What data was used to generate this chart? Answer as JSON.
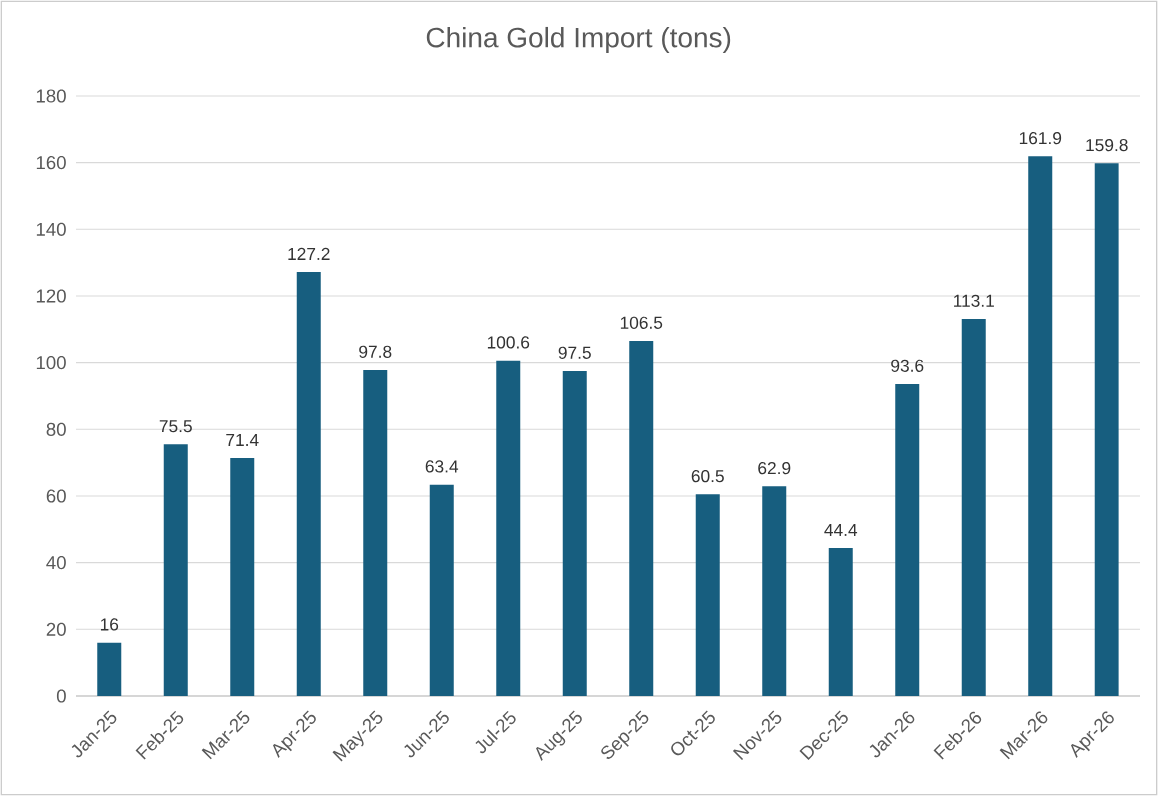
{
  "chart_data": {
    "type": "bar",
    "title": "China Gold Import (tons)",
    "categories": [
      "Jan-25",
      "Feb-25",
      "Mar-25",
      "Apr-25",
      "May-25",
      "Jun-25",
      "Jul-25",
      "Aug-25",
      "Sep-25",
      "Oct-25",
      "Nov-25",
      "Dec-25",
      "Jan-26",
      "Feb-26",
      "Mar-26",
      "Apr-26"
    ],
    "values": [
      16,
      75.5,
      71.4,
      127.2,
      97.8,
      63.4,
      100.6,
      97.5,
      106.5,
      60.5,
      62.9,
      44.4,
      93.6,
      113.1,
      161.9,
      159.8
    ],
    "color": "#175e7f",
    "ylim": [
      0,
      180
    ],
    "yticks": [
      0,
      20,
      40,
      60,
      80,
      100,
      120,
      140,
      160,
      180
    ],
    "grid": "y",
    "data_labels": true
  }
}
